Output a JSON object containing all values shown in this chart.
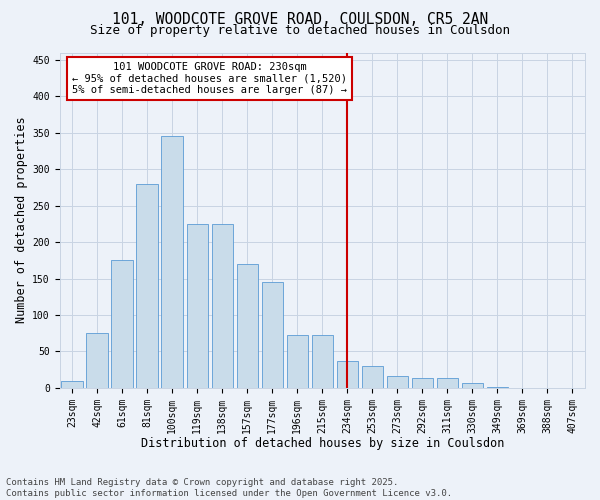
{
  "title_line1": "101, WOODCOTE GROVE ROAD, COULSDON, CR5 2AN",
  "title_line2": "Size of property relative to detached houses in Coulsdon",
  "xlabel": "Distribution of detached houses by size in Coulsdon",
  "ylabel": "Number of detached properties",
  "footer_line1": "Contains HM Land Registry data © Crown copyright and database right 2025.",
  "footer_line2": "Contains public sector information licensed under the Open Government Licence v3.0.",
  "annotation_line1": "101 WOODCOTE GROVE ROAD: 230sqm",
  "annotation_line2": "← 95% of detached houses are smaller (1,520)",
  "annotation_line3": "5% of semi-detached houses are larger (87) →",
  "bar_categories": [
    "23sqm",
    "42sqm",
    "61sqm",
    "81sqm",
    "100sqm",
    "119sqm",
    "138sqm",
    "157sqm",
    "177sqm",
    "196sqm",
    "215sqm",
    "234sqm",
    "253sqm",
    "273sqm",
    "292sqm",
    "311sqm",
    "330sqm",
    "349sqm",
    "369sqm",
    "388sqm",
    "407sqm"
  ],
  "bar_values": [
    10,
    75,
    175,
    280,
    345,
    225,
    225,
    170,
    145,
    72,
    72,
    37,
    30,
    16,
    14,
    14,
    6,
    1,
    0,
    0,
    0
  ],
  "bar_color": "#c9dcea",
  "bar_edge_color": "#5b9bd5",
  "vline_color": "#cc0000",
  "vline_x": 11.0,
  "ylim": [
    0,
    460
  ],
  "yticks": [
    0,
    50,
    100,
    150,
    200,
    250,
    300,
    350,
    400,
    450
  ],
  "grid_color": "#c8d4e3",
  "bg_color": "#edf2f9",
  "plot_bg_color": "#edf2f9",
  "title_fontsize": 10.5,
  "subtitle_fontsize": 9,
  "axis_label_fontsize": 8.5,
  "tick_fontsize": 7,
  "annotation_fontsize": 7.5,
  "footer_fontsize": 6.5
}
